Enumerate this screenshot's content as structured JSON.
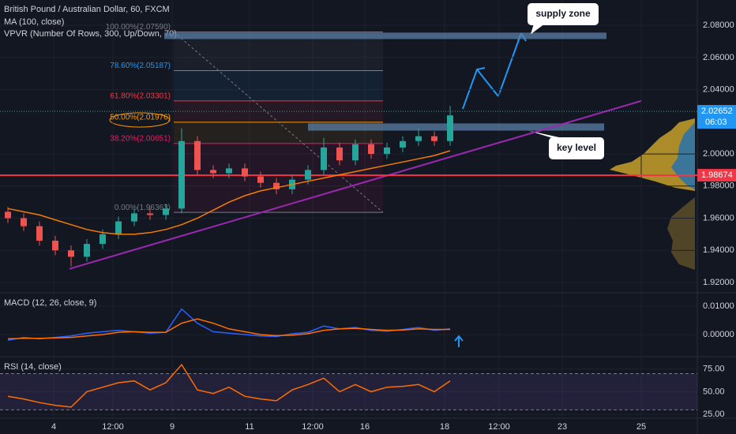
{
  "chart_data": [
    {
      "type": "candlestick",
      "title": "British Pound / Australian Dollar, 60, FXCM",
      "subtitles": [
        "MA (100, close)",
        "VPVR (Number Of Rows, 300, Up/Down, 70)"
      ],
      "x": [
        5,
        15,
        25,
        35,
        45,
        55,
        65,
        75,
        85,
        95,
        105,
        115,
        125,
        135,
        145,
        155,
        165,
        175,
        185,
        195,
        205,
        215,
        225,
        235,
        245,
        255,
        265,
        275,
        285
      ],
      "open": [
        1.964,
        1.96,
        1.955,
        1.946,
        1.94,
        1.936,
        1.944,
        1.95,
        1.958,
        1.963,
        1.962,
        1.966,
        2.008,
        1.99,
        1.988,
        1.991,
        1.986,
        1.982,
        1.978,
        1.984,
        1.99,
        2.004,
        1.996,
        2.006,
        2.0,
        2.004,
        2.008,
        2.011,
        2.008
      ],
      "high": [
        1.967,
        1.963,
        1.958,
        1.949,
        1.943,
        1.947,
        1.953,
        1.961,
        1.966,
        1.966,
        1.969,
        2.016,
        2.011,
        1.993,
        1.994,
        1.994,
        1.989,
        1.985,
        1.987,
        1.993,
        2.01,
        2.007,
        2.009,
        2.009,
        2.007,
        2.011,
        2.016,
        2.014,
        2.03
      ],
      "low": [
        1.957,
        1.952,
        1.943,
        1.937,
        1.93,
        1.933,
        1.941,
        1.947,
        1.955,
        1.959,
        1.959,
        1.963,
        1.987,
        1.985,
        1.985,
        1.983,
        1.979,
        1.975,
        1.975,
        1.981,
        1.987,
        1.993,
        1.993,
        1.997,
        1.997,
        2.001,
        2.005,
        2.005,
        2.005
      ],
      "close": [
        1.96,
        1.955,
        1.946,
        1.94,
        1.936,
        1.944,
        1.95,
        1.958,
        1.963,
        1.962,
        1.966,
        2.008,
        1.99,
        1.988,
        1.991,
        1.986,
        1.982,
        1.978,
        1.984,
        1.99,
        2.004,
        1.996,
        2.006,
        2.0,
        2.004,
        2.008,
        2.011,
        2.008,
        2.024
      ],
      "up_color": "#26a69a",
      "down_color": "#ef5350",
      "series": [
        {
          "color": "#f57c00",
          "values": [
            1.966,
            1.964,
            1.962,
            1.959,
            1.956,
            1.953,
            1.951,
            1.95,
            1.95,
            1.951,
            1.953,
            1.956,
            1.96,
            1.965,
            1.97,
            1.974,
            1.977,
            1.979,
            1.981,
            1.983,
            1.985,
            1.987,
            1.989,
            1.991,
            1.993,
            1.995,
            1.997,
            1.999,
            2.002
          ]
        }
      ],
      "xlim": [
        0,
        441.5
      ],
      "xticks": [
        {
          "value": 34,
          "label": "4"
        },
        {
          "value": 71.5,
          "label": "12:00"
        },
        {
          "value": 109,
          "label": "9"
        },
        {
          "value": 158,
          "label": "11"
        },
        {
          "value": 198,
          "label": "12:00"
        },
        {
          "value": 231,
          "label": "16"
        },
        {
          "value": 281.5,
          "label": "18"
        },
        {
          "value": 316,
          "label": "12:00"
        },
        {
          "value": 356,
          "label": "23"
        },
        {
          "value": 406,
          "label": "25"
        }
      ],
      "ylim": [
        1.9136,
        2.0958
      ],
      "yticks": [
        {
          "value": 2.08,
          "label": "2.08000"
        },
        {
          "value": 2.06,
          "label": "2.06000"
        },
        {
          "value": 2.04,
          "label": "2.04000"
        },
        {
          "value": 2.0,
          "label": "2.00000"
        },
        {
          "value": 1.98,
          "label": "1.98000"
        },
        {
          "value": 1.96,
          "label": "1.96000"
        },
        {
          "value": 1.94,
          "label": "1.94000"
        },
        {
          "value": 1.92,
          "label": "1.92000"
        }
      ],
      "levels": [
        {
          "value": 1.98674,
          "label": "1.98674",
          "color": "#f23645"
        }
      ],
      "last_price": {
        "value": 2.02652,
        "label": "2.02652",
        "countdown": "06:03",
        "color": "#2196f3"
      },
      "fib": {
        "x_range": [
          110,
          242.5
        ],
        "levels": [
          {
            "value": 2.0759,
            "label": "100.00%(2.07590)",
            "color": "#787b86"
          },
          {
            "value": 2.05187,
            "label": "78.60%(2.05187)",
            "color": "#2196f3"
          },
          {
            "value": 2.03301,
            "label": "61.80%(2.03301)",
            "color": "#f23645"
          },
          {
            "value": 2.01976,
            "label": "50.00%(2.01976)",
            "color": "#ff9800"
          },
          {
            "value": 2.00651,
            "label": "38.20%(2.00651)",
            "color": "#e91e63"
          },
          {
            "value": 1.96363,
            "label": "0.00%(1.96363)",
            "color": "#787b86"
          }
        ]
      },
      "zones": [
        {
          "label": "supply zone",
          "x_range": [
            104,
            384
          ],
          "y_range": [
            2.0715,
            2.0755
          ]
        },
        {
          "label": "key level",
          "x_range": [
            195,
            382.5
          ],
          "y_range": [
            2.0145,
            2.019
          ]
        }
      ],
      "trendline": {
        "color": "#9c27b0",
        "x": [
          44,
          406
        ],
        "y": [
          1.9285,
          2.033
        ]
      }
    },
    {
      "type": "line",
      "title": "MACD (12, 26, close, 9)",
      "x": [
        5,
        15,
        25,
        35,
        45,
        55,
        65,
        75,
        85,
        95,
        105,
        115,
        125,
        135,
        145,
        155,
        165,
        175,
        185,
        195,
        205,
        215,
        225,
        235,
        245,
        255,
        265,
        275,
        285
      ],
      "series": [
        {
          "color": "#2962ff",
          "values": [
            -0.002,
            -0.001,
            -0.0015,
            -0.001,
            -0.0005,
            0.0005,
            0.001,
            0.0015,
            0.001,
            0.0005,
            0.0008,
            0.009,
            0.004,
            0.001,
            0.0005,
            0.0,
            -0.0005,
            -0.0007,
            0.0003,
            0.0008,
            0.003,
            0.002,
            0.0025,
            0.0015,
            0.0012,
            0.0018,
            0.0025,
            0.0015,
            0.002
          ]
        },
        {
          "color": "#ff6d00",
          "values": [
            -0.0015,
            -0.0013,
            -0.0013,
            -0.0012,
            -0.001,
            -0.0005,
            0.0,
            0.0008,
            0.001,
            0.0008,
            0.0008,
            0.004,
            0.0055,
            0.004,
            0.002,
            0.001,
            0.0,
            -0.0004,
            -0.0002,
            0.0003,
            0.0015,
            0.002,
            0.0022,
            0.0018,
            0.0015,
            0.0016,
            0.002,
            0.0018,
            0.0018
          ]
        }
      ],
      "xlim": [
        0,
        441.5
      ],
      "ylim": [
        -0.00778,
        0.01444
      ],
      "yticks": [
        {
          "value": 0.01,
          "label": "0.01000"
        },
        {
          "value": 0,
          "label": "0.00000"
        }
      ]
    },
    {
      "type": "line",
      "title": "RSI (14, close)",
      "x": [
        5,
        15,
        25,
        35,
        45,
        55,
        65,
        75,
        85,
        95,
        105,
        115,
        125,
        135,
        145,
        155,
        165,
        175,
        185,
        195,
        205,
        215,
        225,
        235,
        245,
        255,
        265,
        275,
        285
      ],
      "series": [
        {
          "color": "#ff6d00",
          "values": [
            45,
            42,
            38,
            35,
            33,
            50,
            55,
            60,
            62,
            52,
            60,
            80,
            52,
            48,
            55,
            45,
            42,
            40,
            52,
            58,
            65,
            50,
            58,
            50,
            55,
            56,
            58,
            50,
            62
          ]
        }
      ],
      "xlim": [
        0,
        441.5
      ],
      "ylim": [
        20.7,
        87.9
      ],
      "yticks": [
        {
          "value": 75,
          "label": "75.00"
        },
        {
          "value": 50,
          "label": "50.00"
        },
        {
          "value": 25,
          "label": "25.00"
        }
      ],
      "bands": [
        30,
        70
      ],
      "band_color": "#7e57c2"
    }
  ]
}
